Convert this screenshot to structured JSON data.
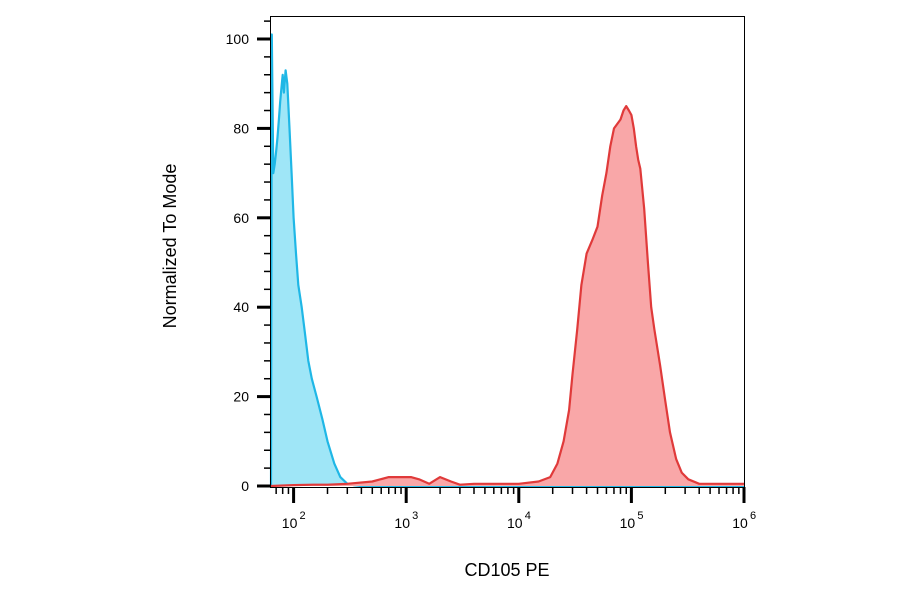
{
  "chart_data": {
    "type": "area",
    "title": "",
    "xlabel": "CD105 PE",
    "ylabel": "Normalized To Mode",
    "x_scale": "log",
    "xlim": [
      63,
      1000000
    ],
    "ylim": [
      0,
      105
    ],
    "grid": false,
    "legend": "none",
    "y_ticks": [
      {
        "value": 0,
        "label": "0"
      },
      {
        "value": 20,
        "label": "20"
      },
      {
        "value": 40,
        "label": "40"
      },
      {
        "value": 60,
        "label": "60"
      },
      {
        "value": 80,
        "label": "80"
      },
      {
        "value": 100,
        "label": "100"
      }
    ],
    "x_ticks": [
      {
        "value": 100,
        "base": "10",
        "exp": "2"
      },
      {
        "value": 1000,
        "base": "10",
        "exp": "3"
      },
      {
        "value": 10000,
        "base": "10",
        "exp": "4"
      },
      {
        "value": 100000,
        "base": "10",
        "exp": "5"
      },
      {
        "value": 1000000,
        "base": "10",
        "exp": "6"
      }
    ],
    "series": [
      {
        "color": "#1fb7e6",
        "fill": "#9fe6f7",
        "x": [
          63,
          64,
          66,
          68,
          70,
          72,
          74,
          76,
          78,
          80,
          82,
          85,
          88,
          92,
          96,
          100,
          105,
          110,
          118,
          125,
          135,
          145,
          160,
          180,
          200,
          230,
          260,
          300,
          340,
          400,
          1000000
        ],
        "y": [
          0,
          101,
          70,
          72,
          75,
          78,
          82,
          86,
          89,
          92,
          88,
          93,
          90,
          80,
          70,
          60,
          52,
          45,
          40,
          35,
          28,
          24,
          20,
          15,
          10,
          5,
          2,
          0.5,
          0.2,
          0,
          0
        ]
      },
      {
        "color": "#e03a3a",
        "fill": "#f9a7a8",
        "x": [
          63,
          100,
          150,
          200,
          300,
          500,
          700,
          900,
          1100,
          1300,
          1600,
          2000,
          2500,
          3000,
          4000,
          6000,
          10000,
          15000,
          19000,
          22000,
          25000,
          28000,
          30000,
          33000,
          36000,
          40000,
          45000,
          50000,
          55000,
          60000,
          65000,
          70000,
          75000,
          80000,
          85000,
          90000,
          95000,
          100000,
          105000,
          110000,
          115000,
          120000,
          130000,
          140000,
          150000,
          160000,
          180000,
          200000,
          220000,
          250000,
          280000,
          320000,
          400000,
          500000,
          700000,
          1000000
        ],
        "y": [
          0,
          0.2,
          0.3,
          0.3,
          0.5,
          1,
          2,
          2,
          2,
          1.5,
          0.5,
          2,
          1,
          0.3,
          0.5,
          0.5,
          0.5,
          1,
          2,
          5,
          10,
          17,
          25,
          35,
          45,
          52,
          55,
          58,
          65,
          70,
          76,
          80,
          81,
          82,
          84,
          85,
          84,
          83,
          80,
          76,
          73,
          71,
          62,
          50,
          40,
          35,
          27,
          19,
          12,
          6,
          3,
          1.5,
          0.5,
          0.5,
          0.5,
          0.5
        ]
      }
    ]
  }
}
